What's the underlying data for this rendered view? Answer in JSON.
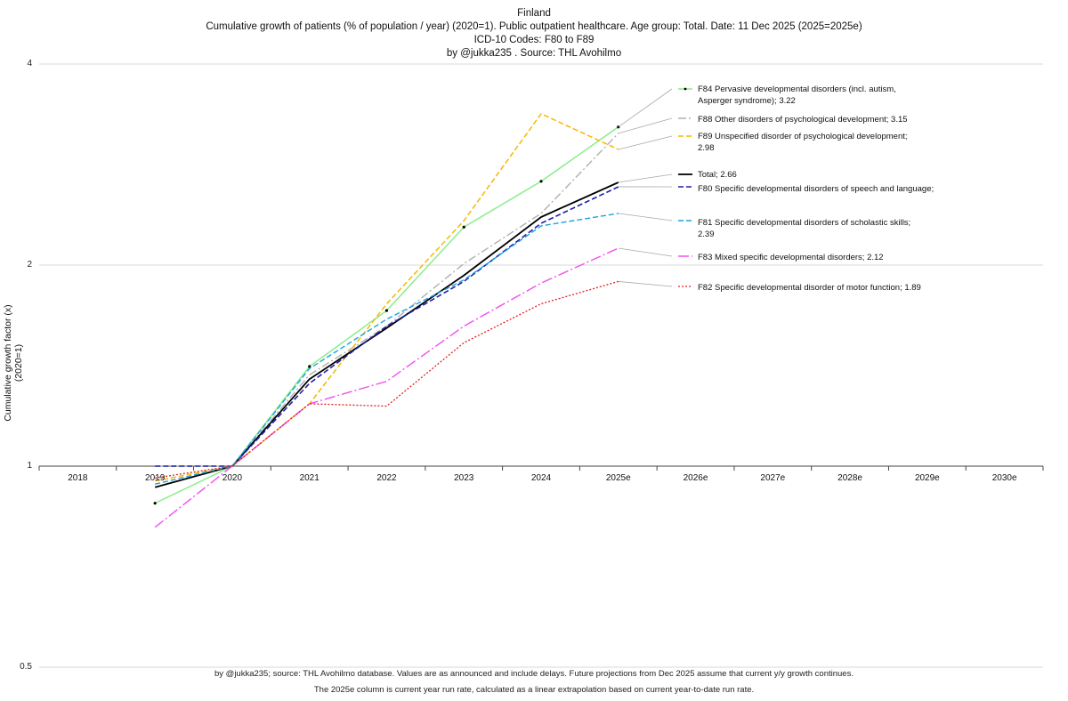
{
  "header": {
    "line1": "Finland",
    "line2": "Cumulative growth of patients (% of population / year) (2020=1).  Public outpatient healthcare. Age group: Total. Date: 11 Dec 2025 (2025=2025e)",
    "line3": "ICD-10 Codes: F80 to F89",
    "line4": "by @jukka235 . Source: THL Avohilmo"
  },
  "footer": {
    "line1": "by @jukka235; source: THL Avohilmo database. Values are as announced and include delays. Future projections from Dec 2025 assume that current y/y growth continues.",
    "line2": "The 2025e column is current year run rate, calculated as a linear extrapolation based on current year-to-date run rate."
  },
  "chart_data": {
    "type": "line",
    "title": "Finland",
    "ylabel": "Cumulative growth factor (x) (2020=1)",
    "xlabel": "",
    "yscale": "log2",
    "ylim": [
      0.5,
      4
    ],
    "yticks": [
      0.5,
      1,
      2,
      4
    ],
    "ytick_labels": [
      "0.5",
      "1",
      "2",
      "4"
    ],
    "categories": [
      "2018",
      "2019",
      "2020",
      "2021",
      "2022",
      "2023",
      "2024",
      "2025e",
      "2026e",
      "2027e",
      "2028e",
      "2029e",
      "2030e"
    ],
    "series": [
      {
        "name": "F84 Pervasive developmental disorders (incl. autism, Asperger syndrome)",
        "final": "3.22",
        "color": "#90ee90",
        "dash": "",
        "width": 1.6,
        "markers": true,
        "values": [
          null,
          0.88,
          1.0,
          1.41,
          1.71,
          2.28,
          2.67,
          3.22,
          null,
          null,
          null,
          null,
          null
        ]
      },
      {
        "name": "F88 Other disorders of psychological development",
        "final": "3.15",
        "color": "#b0b0b0",
        "dash": "9,3,2,3",
        "width": 1.4,
        "markers": false,
        "values": [
          null,
          1.0,
          1.0,
          1.37,
          1.62,
          2.01,
          2.39,
          3.15,
          null,
          null,
          null,
          null,
          null
        ]
      },
      {
        "name": "F89 Unspecified disorder of psychological development",
        "final": "2.98",
        "color": "#f5b800",
        "dash": "6,3",
        "width": 1.5,
        "markers": false,
        "values": [
          null,
          0.95,
          1.0,
          1.24,
          1.75,
          2.33,
          3.37,
          2.98,
          null,
          null,
          null,
          null,
          null
        ]
      },
      {
        "name": "Total",
        "final": "2.66",
        "color": "#000000",
        "dash": "",
        "width": 1.8,
        "markers": false,
        "values": [
          null,
          0.93,
          1.0,
          1.35,
          1.61,
          1.93,
          2.36,
          2.66,
          null,
          null,
          null,
          null,
          null
        ]
      },
      {
        "name": "F80 Specific developmental disorders of speech and language",
        "final": "",
        "color": "#1f1faa",
        "dash": "6,3",
        "width": 1.6,
        "markers": false,
        "values": [
          null,
          1.0,
          1.0,
          1.33,
          1.62,
          1.89,
          2.31,
          2.62,
          null,
          null,
          null,
          null,
          null
        ]
      },
      {
        "name": "F81 Specific developmental disorders of scholastic skills",
        "final": "2.39",
        "color": "#1aa3e0",
        "dash": "6,3",
        "width": 1.4,
        "markers": false,
        "values": [
          null,
          0.94,
          1.0,
          1.4,
          1.66,
          1.9,
          2.29,
          2.39,
          null,
          null,
          null,
          null,
          null
        ]
      },
      {
        "name": "F83 Mixed specific developmental disorders",
        "final": "2.12",
        "color": "#f050f0",
        "dash": "12,3,2,3",
        "width": 1.4,
        "markers": false,
        "values": [
          null,
          0.81,
          1.0,
          1.24,
          1.34,
          1.62,
          1.88,
          2.12,
          null,
          null,
          null,
          null,
          null
        ]
      },
      {
        "name": "F82 Specific developmental disorder of motor function",
        "final": "1.89",
        "color": "#e02020",
        "dash": "2,2",
        "width": 1.3,
        "markers": false,
        "values": [
          null,
          0.96,
          1.0,
          1.24,
          1.23,
          1.53,
          1.75,
          1.89,
          null,
          null,
          null,
          null,
          null
        ]
      }
    ]
  },
  "legend": [
    {
      "line1": "F84 Pervasive developmental disorders (incl. autism,",
      "line2": "Asperger syndrome); 3.22"
    },
    {
      "line1": "F88 Other disorders of psychological development; 3.15",
      "line2": ""
    },
    {
      "line1": "F89 Unspecified disorder of psychological development;",
      "line2": "2.98"
    },
    {
      "line1": "Total; 2.66",
      "line2": ""
    },
    {
      "line1": "F80 Specific developmental disorders of speech and language;",
      "line2": ""
    },
    {
      "line1": "F81 Specific developmental disorders of scholastic skills;",
      "line2": "2.39"
    },
    {
      "line1": "F83 Mixed specific developmental disorders; 2.12",
      "line2": ""
    },
    {
      "line1": "F82 Specific developmental disorder of motor function; 1.89",
      "line2": ""
    }
  ]
}
